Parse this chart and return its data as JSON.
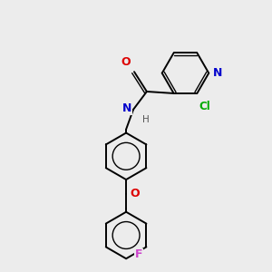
{
  "bg_color": "#ececec",
  "bond_color": "#000000",
  "atom_colors": {
    "O": "#dd0000",
    "N_amide": "#0000cc",
    "N_pyridine": "#0000cc",
    "Cl": "#00aa00",
    "F": "#cc44cc",
    "H": "#555555"
  },
  "figsize": [
    3.0,
    3.0
  ],
  "dpi": 100,
  "lw": 1.4,
  "lw_inner": 1.0,
  "ring_r": 26,
  "dbl_off": 2.8
}
